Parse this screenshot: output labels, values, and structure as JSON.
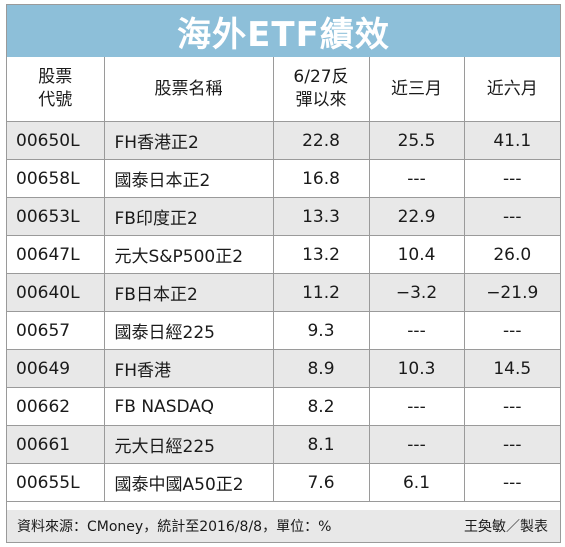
{
  "title": "海外ETF績效",
  "headers": {
    "code": [
      "股票",
      "代號"
    ],
    "name": "股票名稱",
    "since": [
      "6/27反",
      "彈以來"
    ],
    "three_month": "近三月",
    "six_month": "近六月"
  },
  "rows": [
    {
      "code": "00650L",
      "name": "FH香港正2",
      "since": "22.8",
      "three_month": "25.5",
      "six_month": "41.1"
    },
    {
      "code": "00658L",
      "name": "國泰日本正2",
      "since": "16.8",
      "three_month": "---",
      "six_month": "---"
    },
    {
      "code": "00653L",
      "name": "FB印度正2",
      "since": "13.3",
      "three_month": "22.9",
      "six_month": "---"
    },
    {
      "code": "00647L",
      "name": "元大S&P500正2",
      "since": "13.2",
      "three_month": "10.4",
      "six_month": "26.0"
    },
    {
      "code": "00640L",
      "name": "FB日本正2",
      "since": "11.2",
      "three_month": "−3.2",
      "six_month": "−21.9"
    },
    {
      "code": "00657",
      "name": "國泰日經225",
      "since": "9.3",
      "three_month": "---",
      "six_month": "---"
    },
    {
      "code": "00649",
      "name": "FH香港",
      "since": "8.9",
      "three_month": "10.3",
      "six_month": "14.5"
    },
    {
      "code": "00662",
      "name": "FB NASDAQ",
      "since": "8.2",
      "three_month": "---",
      "six_month": "---"
    },
    {
      "code": "00661",
      "name": "元大日經225",
      "since": "8.1",
      "three_month": "---",
      "six_month": "---"
    },
    {
      "code": "00655L",
      "name": "國泰中國A50正2",
      "since": "7.6",
      "three_month": "6.1",
      "six_month": "---"
    }
  ],
  "footer": {
    "source": "資料來源：CMoney，統計至2016/8/8，單位：%",
    "credit": "王奐敏／製表"
  }
}
